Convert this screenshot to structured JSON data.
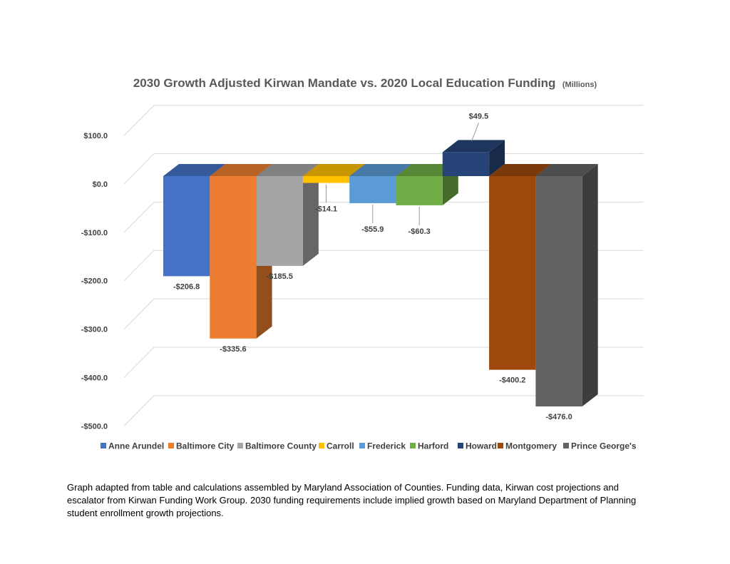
{
  "chart_data": {
    "type": "bar",
    "title": "2030 Growth Adjusted Kirwan Mandate vs. 2020 Local Education Funding",
    "title_unit": "(Millions)",
    "categories": [
      "Anne Arundel",
      "Baltimore City",
      "Baltimore County",
      "Carroll",
      "Frederick",
      "Harford",
      "Howard",
      "Montgomery",
      "Prince George's"
    ],
    "values": [
      -206.8,
      -335.6,
      -185.5,
      -14.1,
      -55.9,
      -60.3,
      49.5,
      -400.2,
      -476.0
    ],
    "data_labels": [
      "-$206.8",
      "-$335.6",
      "-$185.5",
      "-$14.1",
      "-$55.9",
      "-$60.3",
      "$49.5",
      "-$400.2",
      "-$476.0"
    ],
    "colors": [
      "#4472C4",
      "#ED7D31",
      "#A5A5A5",
      "#FFC000",
      "#5B9BD5",
      "#70AD47",
      "#264478",
      "#9E480E",
      "#636363"
    ],
    "ylim": [
      -500,
      100
    ],
    "yticks": [
      100,
      0,
      -100,
      -200,
      -300,
      -400,
      -500
    ],
    "ytick_labels": [
      "$100.0",
      "$0.0",
      "-$100.0",
      "-$200.0",
      "-$300.0",
      "-$400.0",
      "-$500.0"
    ],
    "grid": true,
    "legend_position": "bottom",
    "style": "3d-column"
  },
  "footnote": "Graph adapted from table and calculations assembled by Maryland Association of Counties. Funding data, Kirwan cost projections and escalator from Kirwan Funding Work Group.  2030 funding requirements include implied growth based on Maryland Department of Planning student enrollment growth projections."
}
